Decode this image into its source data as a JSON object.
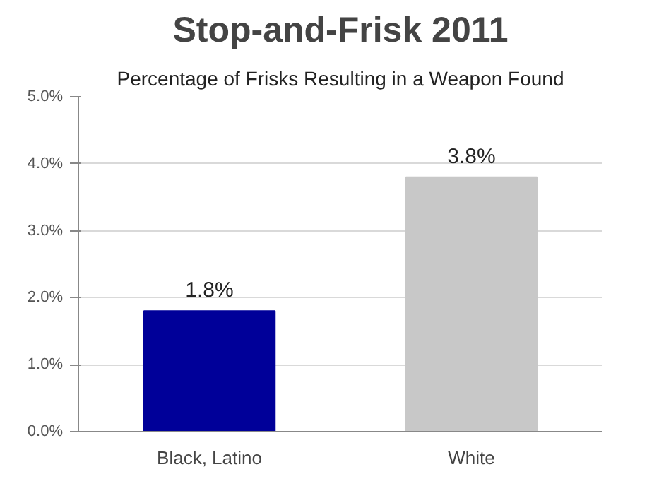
{
  "chart_data": {
    "type": "bar",
    "title": "Stop-and-Frisk 2011",
    "subtitle": "Percentage of Frisks Resulting in a Weapon Found",
    "categories": [
      "Black, Latino",
      "White"
    ],
    "values": [
      1.8,
      3.8
    ],
    "colors": [
      "#000099",
      "#c8c8c8"
    ],
    "value_labels": [
      "1.8%",
      "3.8%"
    ],
    "ylim": [
      0,
      5
    ],
    "yticks": [
      {
        "value": 0,
        "label": "0.0%"
      },
      {
        "value": 1,
        "label": "1.0%"
      },
      {
        "value": 2,
        "label": "2.0%"
      },
      {
        "value": 3,
        "label": "3.0%"
      },
      {
        "value": 4,
        "label": "4.0%"
      },
      {
        "value": 5,
        "label": "5.0%"
      }
    ],
    "grid": "y"
  }
}
